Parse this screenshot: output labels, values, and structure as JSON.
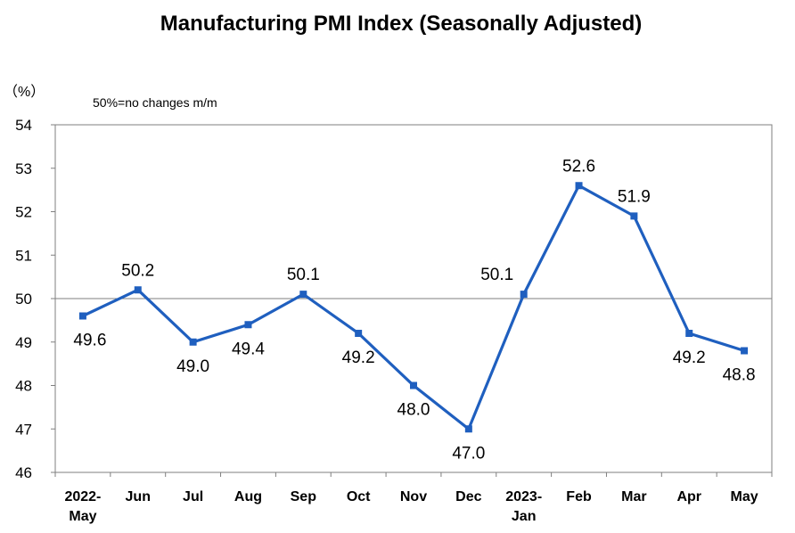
{
  "chart_data": {
    "type": "line",
    "title": "Manufacturing PMI Index (Seasonally Adjusted)",
    "ylabel": "（%）",
    "note": "50%=no changes m/m",
    "ylim": [
      46,
      54
    ],
    "yticks": [
      46,
      47,
      48,
      49,
      50,
      51,
      52,
      53,
      54
    ],
    "reference_line": 50,
    "categories": [
      [
        "2022-",
        "May"
      ],
      [
        "Jun"
      ],
      [
        "Jul"
      ],
      [
        "Aug"
      ],
      [
        "Sep"
      ],
      [
        "Oct"
      ],
      [
        "Nov"
      ],
      [
        "Dec"
      ],
      [
        "2023-",
        "Jan"
      ],
      [
        "Feb"
      ],
      [
        "Mar"
      ],
      [
        "Apr"
      ],
      [
        "May"
      ]
    ],
    "series": [
      {
        "name": "Manufacturing PMI",
        "color": "#1f5fbf",
        "values": [
          49.6,
          50.2,
          49.0,
          49.4,
          50.1,
          49.2,
          48.0,
          47.0,
          50.1,
          52.6,
          51.9,
          49.2,
          48.8
        ],
        "labels": [
          "49.6",
          "50.2",
          "49.0",
          "49.4",
          "50.1",
          "49.2",
          "48.0",
          "47.0",
          "50.1",
          "52.6",
          "51.9",
          "49.2",
          "48.8"
        ],
        "label_positions": [
          "below",
          "above",
          "below",
          "below",
          "above",
          "below",
          "below",
          "below",
          "above-left",
          "above",
          "above",
          "below",
          "below"
        ]
      }
    ]
  }
}
